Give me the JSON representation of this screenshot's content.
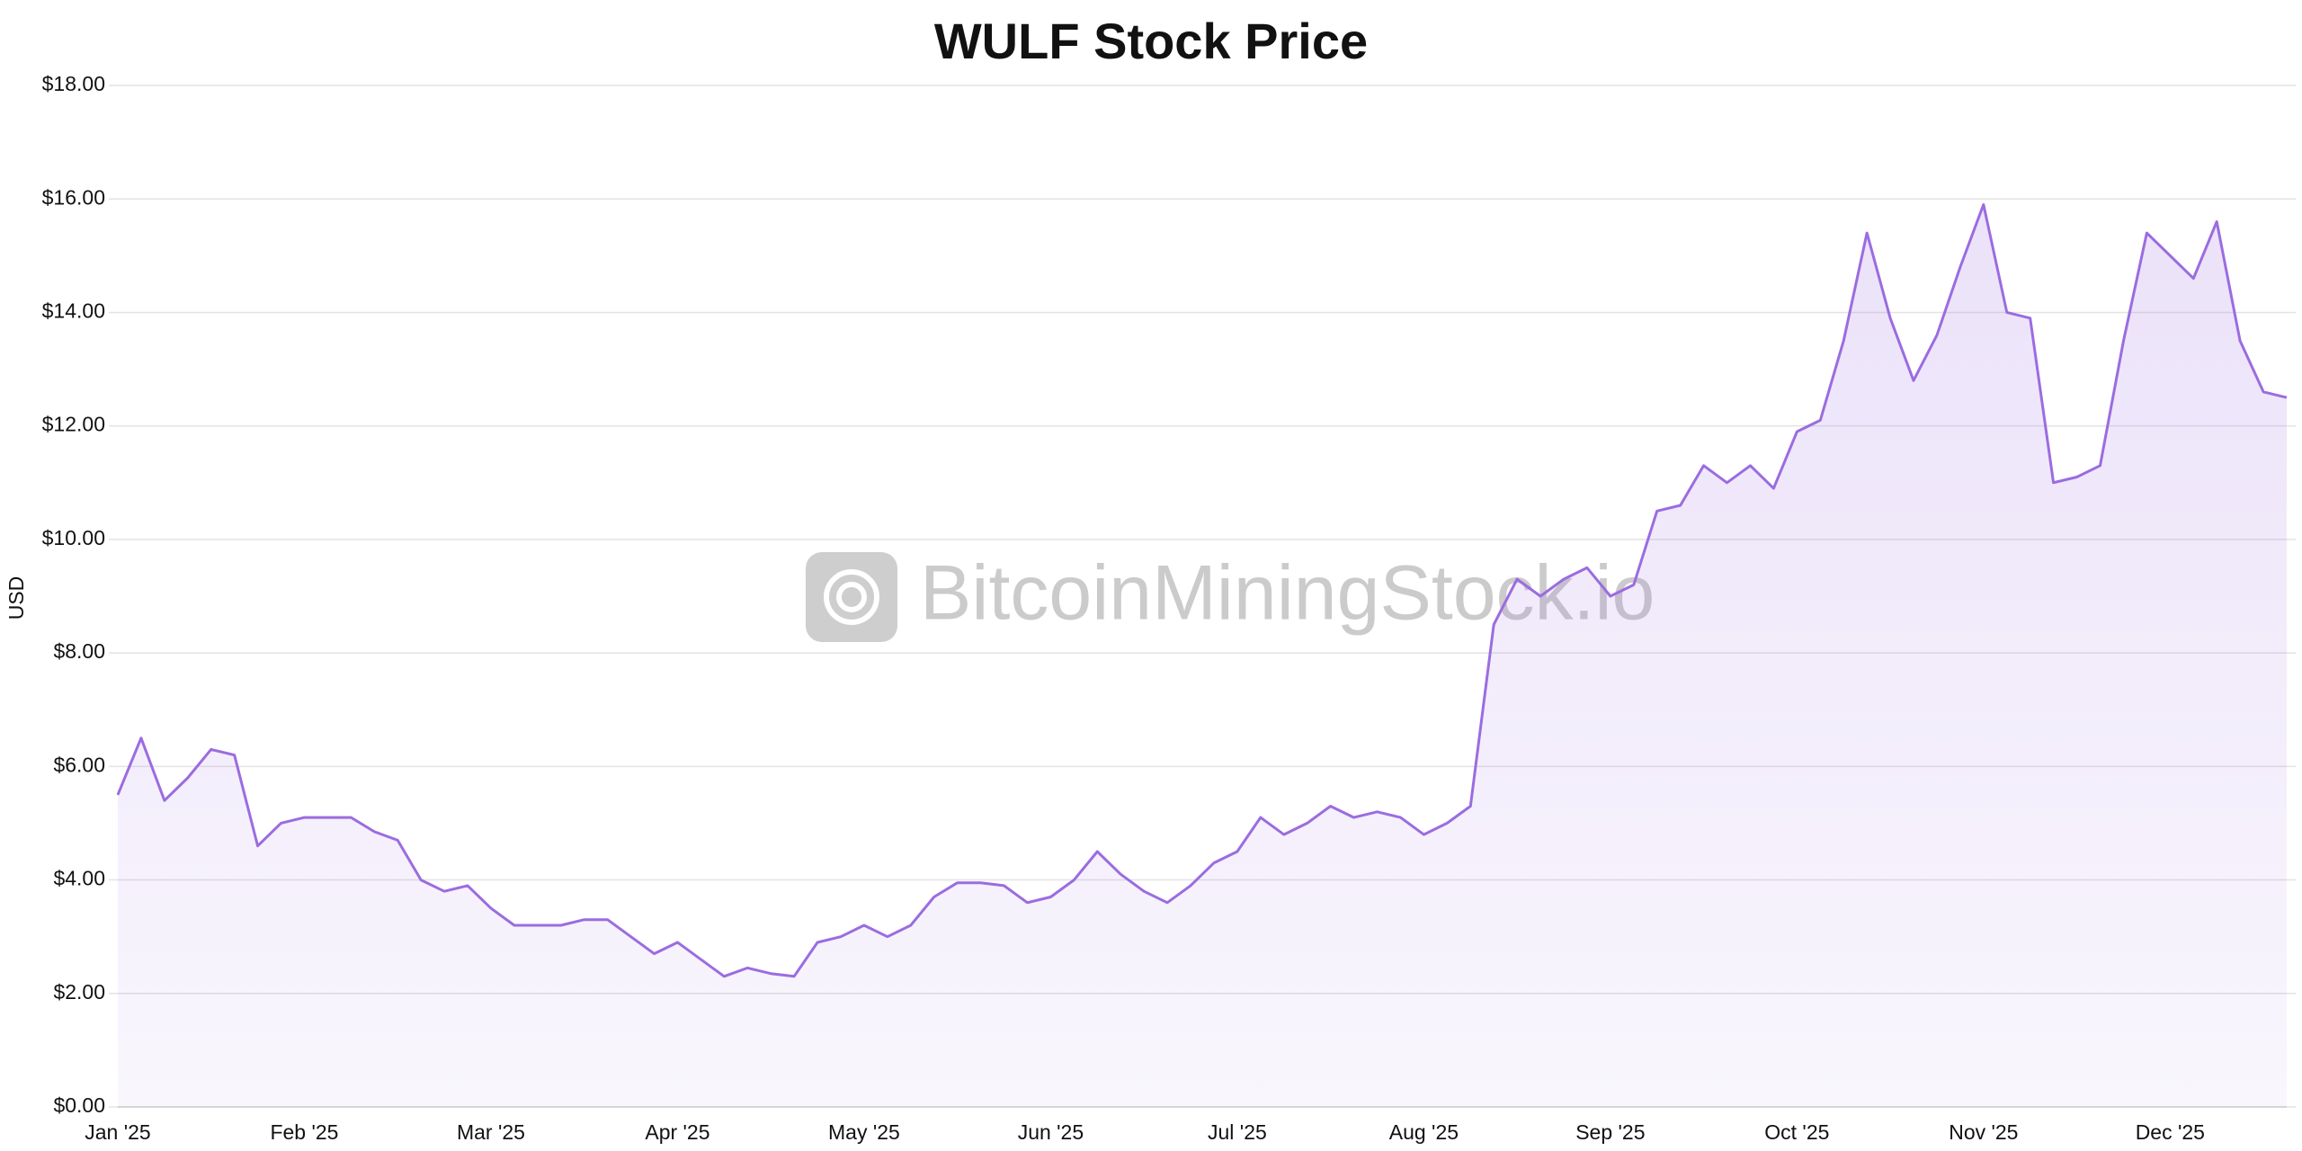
{
  "chart_data": {
    "type": "area",
    "title": "WULF Stock Price",
    "y_label": "USD",
    "watermark": "BitcoinMiningStock.io",
    "color": "#9b6ce0",
    "grid": true,
    "categories": [
      "Jan '25",
      null,
      null,
      null,
      null,
      null,
      null,
      null,
      "Feb '25",
      null,
      null,
      null,
      null,
      null,
      null,
      null,
      "Mar '25",
      null,
      null,
      null,
      null,
      null,
      null,
      null,
      "Apr '25",
      null,
      null,
      null,
      null,
      null,
      null,
      null,
      "May '25",
      null,
      null,
      null,
      null,
      null,
      null,
      null,
      "Jun '25",
      null,
      null,
      null,
      null,
      null,
      null,
      null,
      "Jul '25",
      null,
      null,
      null,
      null,
      null,
      null,
      null,
      "Aug '25",
      null,
      null,
      null,
      null,
      null,
      null,
      null,
      "Sep '25",
      null,
      null,
      null,
      null,
      null,
      null,
      null,
      "Oct '25",
      null,
      null,
      null,
      null,
      null,
      null,
      null,
      "Nov '25",
      null,
      null,
      null,
      null,
      null,
      null,
      null,
      "Dec '25",
      null,
      null,
      null,
      null,
      null
    ],
    "values": [
      5.5,
      6.5,
      5.4,
      5.8,
      6.3,
      6.2,
      4.6,
      5.0,
      5.1,
      5.1,
      5.1,
      4.85,
      4.7,
      4.0,
      3.8,
      3.9,
      3.5,
      3.2,
      3.2,
      3.2,
      3.3,
      3.3,
      3.0,
      2.7,
      2.9,
      2.6,
      2.3,
      2.45,
      2.35,
      2.3,
      2.9,
      3.0,
      3.2,
      3.0,
      3.2,
      3.7,
      3.95,
      3.95,
      3.9,
      3.6,
      3.7,
      4.0,
      4.5,
      4.1,
      3.8,
      3.6,
      3.9,
      4.3,
      4.5,
      5.1,
      4.8,
      5.0,
      5.3,
      5.1,
      5.2,
      5.1,
      4.8,
      5.0,
      5.3,
      8.5,
      9.3,
      9.0,
      9.3,
      9.5,
      9.0,
      9.2,
      10.5,
      10.6,
      11.3,
      11.0,
      11.3,
      10.9,
      11.9,
      12.1,
      13.5,
      15.4,
      13.9,
      12.8,
      13.6,
      14.8,
      15.9,
      14.0,
      13.9,
      11.0,
      11.1,
      11.3,
      13.5,
      15.4,
      15.0,
      14.6,
      15.6,
      13.5,
      12.6,
      12.5
    ],
    "ylim": [
      0,
      18
    ],
    "yticks": [
      {
        "value": 0,
        "label": "$0.00"
      },
      {
        "value": 2,
        "label": "$2.00"
      },
      {
        "value": 4,
        "label": "$4.00"
      },
      {
        "value": 6,
        "label": "$6.00"
      },
      {
        "value": 8,
        "label": "$8.00"
      },
      {
        "value": 10,
        "label": "$10.00"
      },
      {
        "value": 12,
        "label": "$12.00"
      },
      {
        "value": 14,
        "label": "$14.00"
      },
      {
        "value": 16,
        "label": "$16.00"
      },
      {
        "value": 18,
        "label": "$18.00"
      }
    ]
  }
}
